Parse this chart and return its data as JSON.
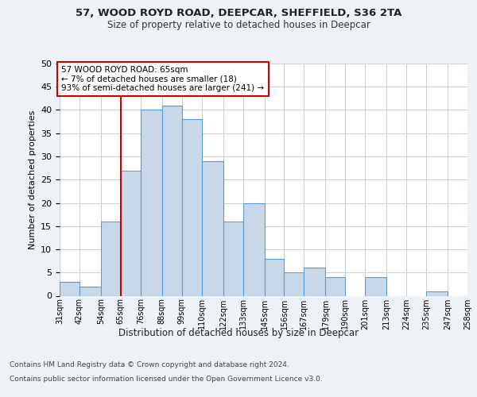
{
  "title1": "57, WOOD ROYD ROAD, DEEPCAR, SHEFFIELD, S36 2TA",
  "title2": "Size of property relative to detached houses in Deepcar",
  "xlabel": "Distribution of detached houses by size in Deepcar",
  "ylabel": "Number of detached properties",
  "bin_labels": [
    "31sqm",
    "42sqm",
    "54sqm",
    "65sqm",
    "76sqm",
    "88sqm",
    "99sqm",
    "110sqm",
    "122sqm",
    "133sqm",
    "145sqm",
    "156sqm",
    "167sqm",
    "179sqm",
    "190sqm",
    "201sqm",
    "213sqm",
    "224sqm",
    "235sqm",
    "247sqm",
    "258sqm"
  ],
  "bar_values": [
    3,
    2,
    16,
    27,
    40,
    41,
    38,
    29,
    16,
    20,
    8,
    5,
    6,
    4,
    0,
    4,
    0,
    0,
    1,
    0
  ],
  "bar_color": "#c8d8e8",
  "bar_edge_color": "#5b9bd5",
  "property_line_x": 65,
  "bin_edges": [
    31,
    42,
    54,
    65,
    76,
    88,
    99,
    110,
    122,
    133,
    145,
    156,
    167,
    179,
    190,
    201,
    213,
    224,
    235,
    247,
    258
  ],
  "annotation_text": "57 WOOD ROYD ROAD: 65sqm\n← 7% of detached houses are smaller (18)\n93% of semi-detached houses are larger (241) →",
  "annotation_box_color": "#ffffff",
  "annotation_box_edge": "#cc0000",
  "vline_color": "#cc0000",
  "ylim": [
    0,
    50
  ],
  "yticks": [
    0,
    5,
    10,
    15,
    20,
    25,
    30,
    35,
    40,
    45,
    50
  ],
  "footer1": "Contains HM Land Registry data © Crown copyright and database right 2024.",
  "footer2": "Contains public sector information licensed under the Open Government Licence v3.0.",
  "background_color": "#eef2f7",
  "plot_bg_color": "#ffffff"
}
